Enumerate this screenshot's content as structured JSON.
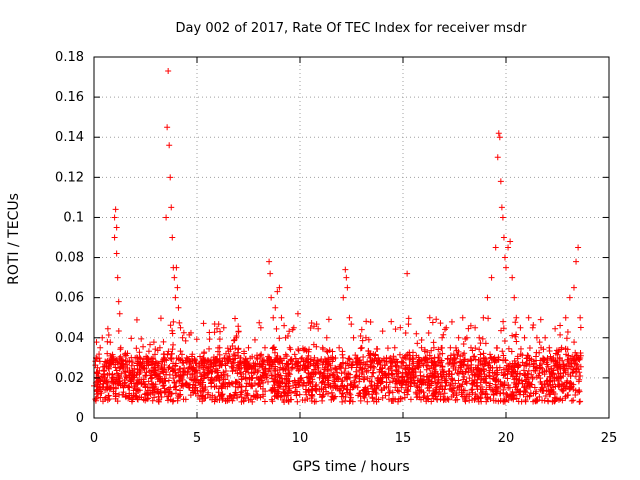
{
  "chart_data": {
    "type": "scatter",
    "title": "Day 002 of 2017, Rate Of TEC Index for receiver msdr",
    "xlabel": "GPS time / hours",
    "ylabel": "ROTI / TECUs",
    "xlim": [
      0,
      25
    ],
    "ylim": [
      0,
      0.18
    ],
    "x_ticks": [
      "0",
      "5",
      "10",
      "15",
      "20",
      "25"
    ],
    "y_ticks": [
      "0",
      "0.02",
      "0.04",
      "0.06",
      "0.08",
      "0.1",
      "0.12",
      "0.14",
      "0.16",
      "0.18"
    ],
    "grid": true,
    "marker": "+",
    "marker_color": "#ff0000",
    "series": [
      {
        "name": "ROTI",
        "points": [
          [
            0.0,
            0.016
          ],
          [
            0.1,
            0.03
          ],
          [
            0.2,
            0.012
          ],
          [
            0.3,
            0.035
          ],
          [
            0.4,
            0.04
          ],
          [
            0.5,
            0.022
          ],
          [
            0.6,
            0.018
          ],
          [
            0.7,
            0.025
          ],
          [
            0.8,
            0.015
          ],
          [
            0.9,
            0.02
          ],
          [
            1.0,
            0.1
          ],
          [
            1.0,
            0.09
          ],
          [
            1.05,
            0.104
          ],
          [
            1.1,
            0.095
          ],
          [
            1.1,
            0.082
          ],
          [
            1.15,
            0.07
          ],
          [
            1.2,
            0.058
          ],
          [
            1.25,
            0.052
          ],
          [
            1.3,
            0.035
          ],
          [
            1.4,
            0.025
          ],
          [
            1.6,
            0.02
          ],
          [
            1.8,
            0.022
          ],
          [
            2.0,
            0.03
          ],
          [
            2.2,
            0.018
          ],
          [
            2.4,
            0.025
          ],
          [
            2.6,
            0.03
          ],
          [
            2.8,
            0.02
          ],
          [
            3.0,
            0.028
          ],
          [
            3.2,
            0.035
          ],
          [
            3.4,
            0.03
          ],
          [
            3.5,
            0.1
          ],
          [
            3.55,
            0.145
          ],
          [
            3.6,
            0.173
          ],
          [
            3.65,
            0.136
          ],
          [
            3.7,
            0.12
          ],
          [
            3.75,
            0.105
          ],
          [
            3.8,
            0.09
          ],
          [
            3.85,
            0.075
          ],
          [
            3.9,
            0.07
          ],
          [
            3.95,
            0.06
          ],
          [
            4.0,
            0.075
          ],
          [
            4.05,
            0.065
          ],
          [
            4.1,
            0.055
          ],
          [
            4.2,
            0.045
          ],
          [
            4.3,
            0.04
          ],
          [
            4.5,
            0.03
          ],
          [
            4.7,
            0.025
          ],
          [
            4.9,
            0.02
          ],
          [
            5.1,
            0.025
          ],
          [
            5.3,
            0.03
          ],
          [
            5.5,
            0.022
          ],
          [
            5.7,
            0.02
          ],
          [
            5.9,
            0.028
          ],
          [
            6.1,
            0.035
          ],
          [
            6.3,
            0.045
          ],
          [
            6.5,
            0.03
          ],
          [
            6.7,
            0.025
          ],
          [
            6.9,
            0.04
          ],
          [
            7.1,
            0.03
          ],
          [
            7.3,
            0.025
          ],
          [
            7.5,
            0.035
          ],
          [
            7.7,
            0.02
          ],
          [
            7.9,
            0.03
          ],
          [
            8.1,
            0.045
          ],
          [
            8.3,
            0.035
          ],
          [
            8.5,
            0.078
          ],
          [
            8.55,
            0.072
          ],
          [
            8.6,
            0.06
          ],
          [
            8.7,
            0.05
          ],
          [
            8.8,
            0.055
          ],
          [
            8.9,
            0.063
          ],
          [
            9.0,
            0.065
          ],
          [
            9.1,
            0.05
          ],
          [
            9.3,
            0.04
          ],
          [
            9.5,
            0.035
          ],
          [
            9.7,
            0.045
          ],
          [
            9.9,
            0.052
          ],
          [
            10.1,
            0.03
          ],
          [
            10.3,
            0.025
          ],
          [
            10.5,
            0.02
          ],
          [
            10.7,
            0.03
          ],
          [
            10.9,
            0.025
          ],
          [
            11.1,
            0.035
          ],
          [
            11.3,
            0.04
          ],
          [
            11.5,
            0.03
          ],
          [
            11.7,
            0.025
          ],
          [
            11.9,
            0.035
          ],
          [
            12.1,
            0.06
          ],
          [
            12.2,
            0.074
          ],
          [
            12.25,
            0.07
          ],
          [
            12.3,
            0.065
          ],
          [
            12.4,
            0.05
          ],
          [
            12.6,
            0.04
          ],
          [
            12.8,
            0.03
          ],
          [
            13.0,
            0.035
          ],
          [
            13.2,
            0.04
          ],
          [
            13.4,
            0.03
          ],
          [
            13.6,
            0.025
          ],
          [
            13.8,
            0.03
          ],
          [
            14.0,
            0.025
          ],
          [
            14.2,
            0.02
          ],
          [
            14.4,
            0.03
          ],
          [
            14.6,
            0.035
          ],
          [
            14.8,
            0.025
          ],
          [
            15.0,
            0.03
          ],
          [
            15.2,
            0.072
          ],
          [
            15.3,
            0.025
          ],
          [
            15.5,
            0.02
          ],
          [
            15.7,
            0.028
          ],
          [
            15.9,
            0.035
          ],
          [
            16.1,
            0.03
          ],
          [
            16.3,
            0.05
          ],
          [
            16.5,
            0.035
          ],
          [
            16.7,
            0.03
          ],
          [
            16.9,
            0.04
          ],
          [
            17.1,
            0.045
          ],
          [
            17.3,
            0.035
          ],
          [
            17.5,
            0.03
          ],
          [
            17.7,
            0.04
          ],
          [
            17.9,
            0.05
          ],
          [
            18.1,
            0.04
          ],
          [
            18.3,
            0.035
          ],
          [
            18.5,
            0.045
          ],
          [
            18.7,
            0.04
          ],
          [
            18.9,
            0.05
          ],
          [
            19.1,
            0.06
          ],
          [
            19.3,
            0.07
          ],
          [
            19.5,
            0.085
          ],
          [
            19.6,
            0.13
          ],
          [
            19.65,
            0.142
          ],
          [
            19.7,
            0.14
          ],
          [
            19.75,
            0.118
          ],
          [
            19.8,
            0.105
          ],
          [
            19.85,
            0.1
          ],
          [
            19.9,
            0.09
          ],
          [
            19.95,
            0.08
          ],
          [
            20.0,
            0.075
          ],
          [
            20.1,
            0.085
          ],
          [
            20.2,
            0.088
          ],
          [
            20.3,
            0.07
          ],
          [
            20.4,
            0.06
          ],
          [
            20.5,
            0.05
          ],
          [
            20.7,
            0.045
          ],
          [
            20.9,
            0.04
          ],
          [
            21.1,
            0.05
          ],
          [
            21.3,
            0.045
          ],
          [
            21.5,
            0.04
          ],
          [
            21.7,
            0.035
          ],
          [
            21.9,
            0.04
          ],
          [
            22.1,
            0.035
          ],
          [
            22.3,
            0.03
          ],
          [
            22.5,
            0.025
          ],
          [
            22.7,
            0.035
          ],
          [
            22.9,
            0.05
          ],
          [
            23.1,
            0.06
          ],
          [
            23.3,
            0.065
          ],
          [
            23.4,
            0.078
          ],
          [
            23.5,
            0.085
          ],
          [
            23.6,
            0.05
          ]
        ]
      }
    ]
  }
}
